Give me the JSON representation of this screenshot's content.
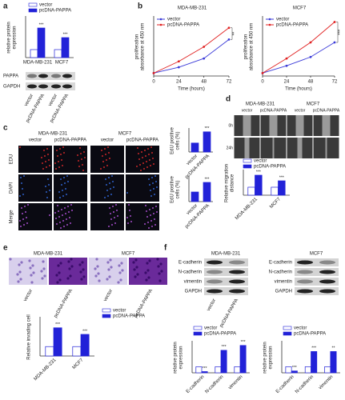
{
  "figure": {
    "a": {
      "letter": "a",
      "rows": [
        "PAPPA",
        "GAPDH"
      ],
      "lanes": [
        "vector",
        "pcDNA-PAPPA",
        "vector",
        "pcDNA-PAPPA"
      ]
    },
    "b": {
      "letter": "b"
    },
    "c": {
      "letter": "c",
      "groups": [
        "MDA-MB-231",
        "MCF7"
      ],
      "lanes": [
        "vector",
        "pcDNA-PAPPA",
        "vector",
        "pcDNA-PAPPA"
      ],
      "rows": [
        "EDU",
        "DAPI",
        "Merge"
      ]
    },
    "d": {
      "letter": "d",
      "groups": [
        "MDA-MB-231",
        "MCF7"
      ],
      "lanes": [
        "vector",
        "pcDNA-PAPPA",
        "vector",
        "pcDNA-PAPPA"
      ],
      "rows": [
        "0h",
        "24h"
      ]
    },
    "e": {
      "letter": "e",
      "groups": [
        "MDA-MB-231",
        "MCF7"
      ],
      "lanes": [
        "vector",
        "pcDNA-PAPPA",
        "vector",
        "pcDNA-PAPPA"
      ]
    },
    "f": {
      "letter": "f",
      "groups": [
        "MDA-MB-231",
        "MCF7"
      ],
      "rows": [
        "E-cadherin",
        "N-cadherin",
        "vimentin",
        "GAPDH"
      ],
      "lanes": [
        "vector",
        "pcDNA-PAPPA"
      ]
    }
  },
  "chart_data": [
    {
      "type": "bar",
      "ylabel": [
        "relative protein",
        "expression"
      ],
      "categories": [
        "MDA-MB-231",
        "MCF7"
      ],
      "ylim": [
        0,
        5
      ],
      "series": [
        {
          "name": "vector",
          "color": "#ffffff",
          "values": [
            1,
            1
          ]
        },
        {
          "name": "pcDNA-PAPPA",
          "color": "#2222d8",
          "values": [
            3.7,
            2.5
          ],
          "annotations": [
            "***",
            "***"
          ]
        }
      ]
    },
    {
      "type": "line",
      "title": "MDA-MB-231",
      "ylabel": [
        "proliferation",
        "absorbance at 450 nm"
      ],
      "xlabel": "Time (hours)",
      "x": [
        0,
        24,
        48,
        72
      ],
      "xlim": [
        0,
        72
      ],
      "xticks": [
        0,
        24,
        48,
        72
      ],
      "ylim": [
        0,
        4
      ],
      "annotation": "**",
      "series": [
        {
          "name": "vector",
          "color": "#3a3ad8",
          "values": [
            0.2,
            0.6,
            1.2,
            2.5
          ]
        },
        {
          "name": "pcDNA-PAPPA",
          "color": "#e02020",
          "values": [
            0.2,
            1.0,
            2.0,
            3.3
          ]
        }
      ]
    },
    {
      "type": "line",
      "title": "MCF7",
      "ylabel": [
        "proliferation",
        "absorbance at 450 nm"
      ],
      "xlabel": "Time (hours)",
      "x": [
        0,
        24,
        48,
        72
      ],
      "xlim": [
        0,
        72
      ],
      "xticks": [
        0,
        24,
        48,
        72
      ],
      "ylim": [
        0,
        4
      ],
      "annotation": "***",
      "series": [
        {
          "name": "vector",
          "color": "#3a3ad8",
          "values": [
            0.2,
            0.7,
            1.3,
            2.3
          ]
        },
        {
          "name": "pcDNA-PAPPA",
          "color": "#e02020",
          "values": [
            0.2,
            1.2,
            2.3,
            3.7
          ]
        }
      ]
    },
    {
      "type": "bar",
      "ylabel": [
        "EdU positive",
        "cells (%)"
      ],
      "categories": [
        "vector",
        "pcDNA-PAPPA"
      ],
      "ylim": [
        0,
        50
      ],
      "series": [
        {
          "color": "#2222d8",
          "values": [
            20,
            45
          ],
          "annotations": [
            null,
            "***"
          ]
        }
      ]
    },
    {
      "type": "bar",
      "ylabel": [
        "EdU positive",
        "cells (%)"
      ],
      "categories": [
        "vector",
        "pcDNA-PAPPA"
      ],
      "ylim": [
        0,
        50
      ],
      "series": [
        {
          "color": "#2222d8",
          "values": [
            20,
            40
          ],
          "annotations": [
            null,
            "***"
          ]
        }
      ]
    },
    {
      "type": "bar",
      "ylabel": [
        "Relative migration",
        "distance"
      ],
      "categories": [
        "MDA-MB-231",
        "MCF7"
      ],
      "ylim": [
        0,
        3
      ],
      "series": [
        {
          "name": "vector",
          "color": "#ffffff",
          "values": [
            1,
            1
          ]
        },
        {
          "name": "pcDNA-PAPPA",
          "color": "#2222d8",
          "values": [
            2.5,
            1.8
          ],
          "annotations": [
            "***",
            "***"
          ]
        }
      ]
    },
    {
      "type": "bar",
      "ylabel": [
        "Relative invading cell"
      ],
      "categories": [
        "MDA-MB-231",
        "MCF7"
      ],
      "ylim": [
        0,
        4
      ],
      "series": [
        {
          "name": "vector",
          "color": "#ffffff",
          "values": [
            1,
            1
          ]
        },
        {
          "name": "pcDNA-PAPPA",
          "color": "#2222d8",
          "values": [
            3,
            2.3
          ],
          "annotations": [
            "***",
            "***"
          ]
        }
      ]
    },
    {
      "type": "bar",
      "ylabel": [
        "relative protein",
        "expression"
      ],
      "categories": [
        "E-cadherin",
        "N-cadherin",
        "vimentin"
      ],
      "ylim": [
        0,
        5
      ],
      "series": [
        {
          "name": "vector",
          "color": "#ffffff",
          "values": [
            1,
            1,
            1
          ]
        },
        {
          "name": "pcDNA-PAPPA",
          "color": "#2222d8",
          "values": [
            0.2,
            3.7,
            4.5
          ],
          "annotations": [
            "***",
            "***",
            "***"
          ]
        }
      ]
    },
    {
      "type": "bar",
      "ylabel": [
        "relative protein",
        "expression"
      ],
      "categories": [
        "E-cadherin",
        "N-cadherin",
        "vimentin"
      ],
      "ylim": [
        0,
        5
      ],
      "series": [
        {
          "name": "vector",
          "color": "#ffffff",
          "values": [
            1,
            1,
            1
          ]
        },
        {
          "name": "pcDNA-PAPPA",
          "color": "#2222d8",
          "values": [
            0.3,
            3.5,
            3.5
          ],
          "annotations": [
            "***",
            "***",
            "**"
          ]
        }
      ]
    }
  ]
}
